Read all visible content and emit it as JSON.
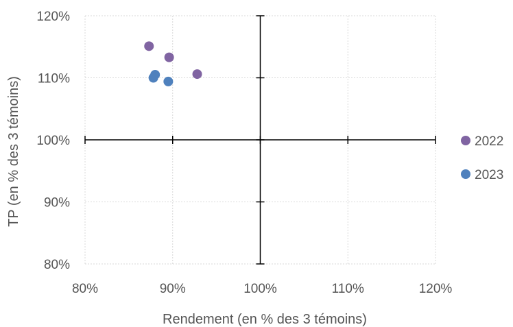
{
  "chart_data": {
    "type": "scatter",
    "xlabel": "Rendement (en % des 3 témoins)",
    "ylabel": "TP (en % des 3 témoins)",
    "xlim": [
      80,
      120
    ],
    "ylim": [
      80,
      120
    ],
    "x_ticks": [
      80,
      90,
      100,
      110,
      120
    ],
    "y_ticks": [
      80,
      90,
      100,
      110,
      120
    ],
    "x_tick_labels": [
      "80%",
      "90%",
      "100%",
      "110%",
      "120%"
    ],
    "y_tick_labels": [
      "80%",
      "90%",
      "100%",
      "110%",
      "120%"
    ],
    "grid": true,
    "crosshair_at": [
      100,
      100
    ],
    "legend": "right",
    "series": [
      {
        "name": "2022",
        "color": "#8064A2",
        "points": [
          {
            "x": 87.3,
            "y": 115.1
          },
          {
            "x": 89.6,
            "y": 113.3
          },
          {
            "x": 92.8,
            "y": 110.6
          }
        ]
      },
      {
        "name": "2023",
        "color": "#4F81BD",
        "points": [
          {
            "x": 88.0,
            "y": 110.5
          },
          {
            "x": 87.8,
            "y": 110.0
          },
          {
            "x": 89.5,
            "y": 109.4
          }
        ]
      }
    ]
  }
}
